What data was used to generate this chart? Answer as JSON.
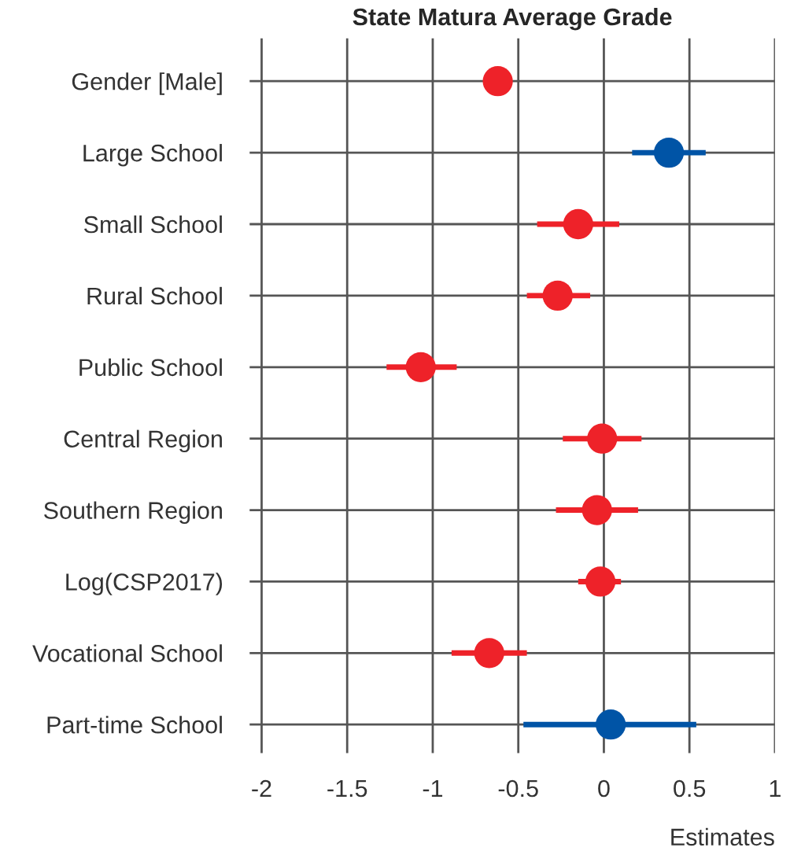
{
  "chart_data": {
    "type": "scatter",
    "title": "State Matura Average Grade",
    "xlabel": "Estimates",
    "orientation": "horizontal",
    "categories": [
      "Gender [Male]",
      "Large School",
      "Small School",
      "Rural School",
      "Public School",
      "Central Region",
      "Southern Region",
      "Log(CSP2017)",
      "Vocational School",
      "Part-time School"
    ],
    "values": [
      -0.62,
      0.38,
      -0.15,
      -0.27,
      -1.07,
      -0.01,
      -0.04,
      -0.02,
      -0.67,
      0.04
    ],
    "errors": [
      null,
      [
        0.165,
        0.595
      ],
      [
        -0.39,
        0.09
      ],
      [
        -0.45,
        -0.08
      ],
      [
        -1.27,
        -0.86
      ],
      [
        -0.24,
        0.22
      ],
      [
        -0.28,
        0.2
      ],
      [
        -0.15,
        0.1
      ],
      [
        -0.89,
        -0.45
      ],
      [
        -0.47,
        0.54
      ]
    ],
    "colors": [
      "#ee2229",
      "#0054a6",
      "#ee2229",
      "#ee2229",
      "#ee2229",
      "#ee2229",
      "#ee2229",
      "#ee2229",
      "#ee2229",
      "#0054a6"
    ],
    "xlim": [
      -2.07,
      1.0
    ],
    "xticks": [
      -2,
      -1.5,
      -1,
      -0.5,
      0,
      0.5,
      1
    ],
    "grid": true,
    "marker": "circle"
  }
}
